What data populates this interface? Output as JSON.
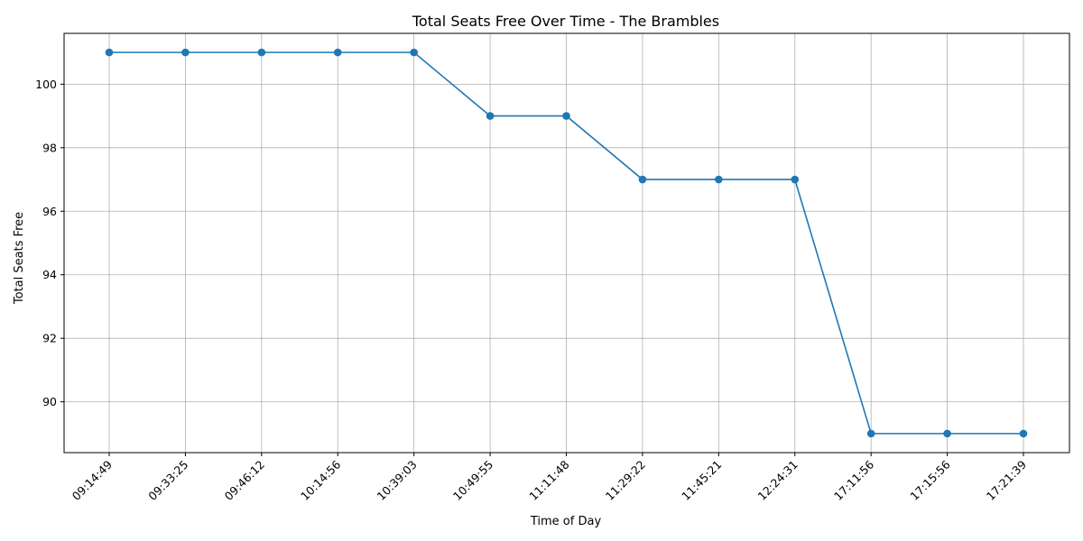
{
  "chart_data": {
    "type": "line",
    "title": "Total Seats Free Over Time - The Brambles",
    "xlabel": "Time of Day",
    "ylabel": "Total Seats Free",
    "categories": [
      "09:14:49",
      "09:33:25",
      "09:46:12",
      "10:14:56",
      "10:39:03",
      "10:49:55",
      "11:11:48",
      "11:29:22",
      "11:45:21",
      "12:24:31",
      "17:11:56",
      "17:15:56",
      "17:21:39"
    ],
    "series": [
      {
        "values": [
          101,
          101,
          101,
          101,
          101,
          99,
          99,
          97,
          97,
          97,
          89,
          89,
          89
        ],
        "color": "#1f77b4",
        "marker": "circle"
      }
    ],
    "ylim": [
      88.4,
      101.6
    ],
    "yticks": [
      90,
      92,
      94,
      96,
      98,
      100
    ],
    "grid": true,
    "xtick_rotation": 45
  }
}
